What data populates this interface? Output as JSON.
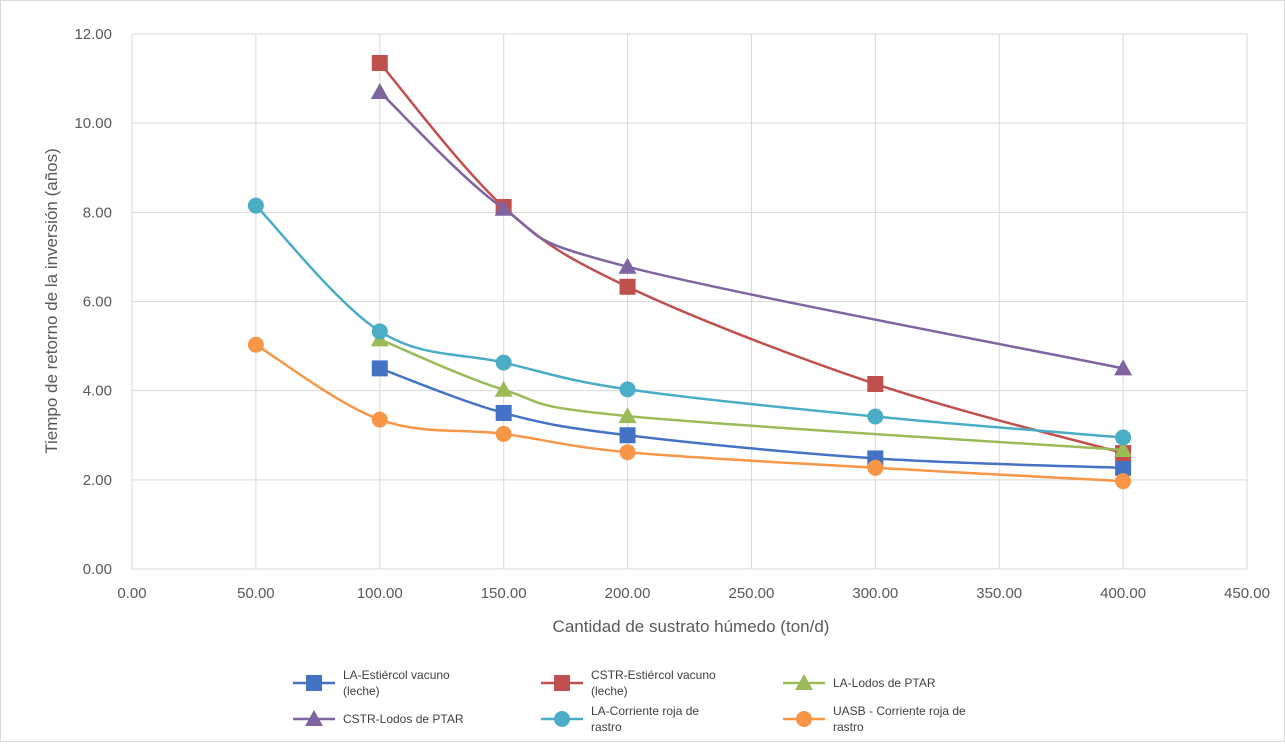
{
  "chart_data": {
    "type": "scatter",
    "xlabel": "Cantidad de sustrato húmedo (ton/d)",
    "ylabel": "Tiempo de retorno de la inversión  (años)",
    "xlim": [
      0,
      450
    ],
    "ylim": [
      0,
      12
    ],
    "x_ticks": [
      "0.00",
      "50.00",
      "100.00",
      "150.00",
      "200.00",
      "250.00",
      "300.00",
      "350.00",
      "400.00",
      "450.00"
    ],
    "y_ticks": [
      "0.00",
      "2.00",
      "4.00",
      "6.00",
      "8.00",
      "10.00",
      "12.00"
    ],
    "grid": true,
    "smooth_lines": true,
    "legend_position": "bottom",
    "series": [
      {
        "name": "LA-Estiércol vacuno (leche)",
        "legend_lines": [
          "LA-Estiércol vacuno",
          "(leche)"
        ],
        "color": "#4472C4",
        "marker": "square",
        "x": [
          100,
          150,
          200,
          300,
          400
        ],
        "y": [
          4.5,
          3.5,
          3.0,
          2.48,
          2.27
        ]
      },
      {
        "name": "CSTR-Estiércol vacuno (leche)",
        "legend_lines": [
          "CSTR-Estiércol vacuno",
          "(leche)"
        ],
        "color": "#C0504D",
        "marker": "square",
        "x": [
          100,
          150,
          200,
          300,
          400
        ],
        "y": [
          11.35,
          8.12,
          6.33,
          4.15,
          2.6
        ]
      },
      {
        "name": "LA-Lodos de PTAR",
        "legend_lines": [
          "LA-Lodos de PTAR"
        ],
        "color": "#9BBB59",
        "marker": "triangle",
        "x": [
          100,
          150,
          200,
          400
        ],
        "y": [
          5.15,
          4.02,
          3.43,
          2.67
        ]
      },
      {
        "name": "CSTR-Lodos de PTAR",
        "legend_lines": [
          "CSTR-Lodos de PTAR"
        ],
        "color": "#8064A2",
        "marker": "triangle",
        "x": [
          100,
          150,
          200,
          400
        ],
        "y": [
          10.7,
          8.08,
          6.78,
          4.5
        ]
      },
      {
        "name": "LA-Corriente roja de rastro",
        "legend_lines": [
          "LA-Corriente roja de",
          "rastro"
        ],
        "color": "#4BACC6",
        "marker": "circle",
        "x": [
          50,
          100,
          150,
          200,
          300,
          400
        ],
        "y": [
          8.15,
          5.33,
          4.63,
          4.03,
          3.42,
          2.95
        ]
      },
      {
        "name": "UASB - Corriente roja de rastro",
        "legend_lines": [
          "UASB - Corriente roja de",
          "rastro"
        ],
        "color": "#F79646",
        "marker": "circle",
        "x": [
          50,
          100,
          150,
          200,
          300,
          400
        ],
        "y": [
          5.03,
          3.35,
          3.03,
          2.62,
          2.27,
          1.97
        ]
      }
    ]
  }
}
